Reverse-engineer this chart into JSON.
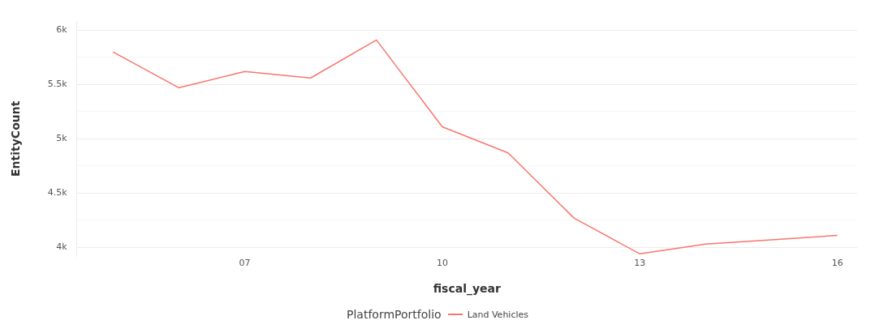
{
  "chart_data": {
    "type": "line",
    "xlabel": "fiscal_year",
    "ylabel": "EntityCount",
    "legend_title": "PlatformPortfolio",
    "legend": "bottom",
    "grid": "y",
    "marker": "none",
    "line_style": "solid",
    "x": [
      2005,
      2006,
      2007,
      2008,
      2009,
      2010,
      2011,
      2012,
      2013,
      2014,
      2015,
      2016
    ],
    "series": [
      {
        "name": "Land Vehicles",
        "color": "#f8766d",
        "values": [
          5800,
          5470,
          5620,
          5560,
          5910,
          5110,
          4870,
          4270,
          3940,
          4030,
          4070,
          4110
        ]
      }
    ],
    "xlim": [
      2004.45,
      2016.3
    ],
    "xticks": [
      {
        "value": 2007,
        "label": "07"
      },
      {
        "value": 2010,
        "label": "10"
      },
      {
        "value": 2013,
        "label": "13"
      },
      {
        "value": 2016,
        "label": "16"
      }
    ],
    "ylim": [
      3920,
      6080
    ],
    "yticks": [
      {
        "value": 4000,
        "label": "4k"
      },
      {
        "value": 4250,
        "label": null
      },
      {
        "value": 4500,
        "label": "4.5k"
      },
      {
        "value": 4750,
        "label": null
      },
      {
        "value": 5000,
        "label": "5k"
      },
      {
        "value": 5250,
        "label": null
      },
      {
        "value": 5500,
        "label": "5.5k"
      },
      {
        "value": 5750,
        "label": null
      },
      {
        "value": 6000,
        "label": "6k"
      }
    ]
  }
}
